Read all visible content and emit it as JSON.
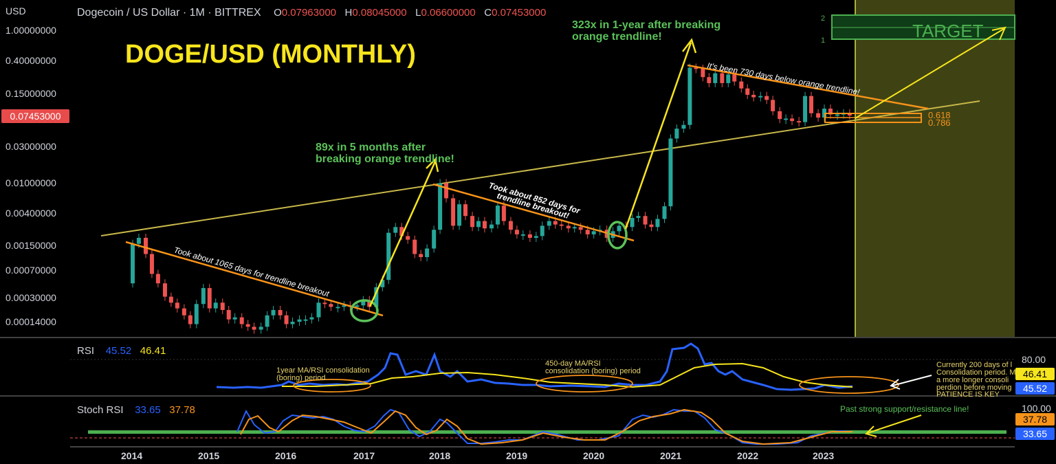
{
  "header": {
    "symbol": "Dogecoin / US Dollar · 1M · BITTREX",
    "o_key": "O",
    "o_val": "0.07963000",
    "h_key": "H",
    "h_val": "0.08045000",
    "l_key": "L",
    "l_val": "0.06600000",
    "c_key": "C",
    "c_val": "0.07453000",
    "currency": "USD"
  },
  "title": "DOGE/USD (MONTHLY)",
  "current_price": "0.07453000",
  "chart_data": {
    "type": "candlestick",
    "scale": "log",
    "y_ticks": [
      "1.00000000",
      "0.40000000",
      "0.15000000",
      "0.03000000",
      "0.01000000",
      "0.00400000",
      "0.00150000",
      "0.00070000",
      "0.00030000",
      "0.00014000"
    ],
    "x_ticks": [
      "2014",
      "2015",
      "2016",
      "2017",
      "2018",
      "2019",
      "2020",
      "2021",
      "2022",
      "2023"
    ],
    "candles": [
      {
        "t": 2014.0,
        "o": 0.00045,
        "c": 0.0015
      },
      {
        "t": 2014.08,
        "o": 0.0015,
        "c": 0.0018
      },
      {
        "t": 2014.17,
        "o": 0.0018,
        "c": 0.0011
      },
      {
        "t": 2014.25,
        "o": 0.0011,
        "c": 0.0006
      },
      {
        "t": 2014.33,
        "o": 0.0006,
        "c": 0.00045
      },
      {
        "t": 2014.42,
        "o": 0.00045,
        "c": 0.0003
      },
      {
        "t": 2014.5,
        "o": 0.0003,
        "c": 0.00025
      },
      {
        "t": 2014.58,
        "o": 0.00025,
        "c": 0.00021
      },
      {
        "t": 2014.67,
        "o": 0.00021,
        "c": 0.00017
      },
      {
        "t": 2014.75,
        "o": 0.00017,
        "c": 0.00013
      },
      {
        "t": 2014.83,
        "o": 0.00013,
        "c": 0.00024
      },
      {
        "t": 2014.92,
        "o": 0.00024,
        "c": 0.00039
      },
      {
        "t": 2015.0,
        "o": 0.00039,
        "c": 0.00021
      },
      {
        "t": 2015.08,
        "o": 0.00021,
        "c": 0.00025
      },
      {
        "t": 2015.17,
        "o": 0.00025,
        "c": 0.0002
      },
      {
        "t": 2015.25,
        "o": 0.0002,
        "c": 0.00015
      },
      {
        "t": 2015.33,
        "o": 0.00015,
        "c": 0.00016
      },
      {
        "t": 2015.42,
        "o": 0.00016,
        "c": 0.00013
      },
      {
        "t": 2015.5,
        "o": 0.00013,
        "c": 0.00012
      },
      {
        "t": 2015.58,
        "o": 0.00012,
        "c": 0.00011
      },
      {
        "t": 2015.67,
        "o": 0.00011,
        "c": 0.00012
      },
      {
        "t": 2015.75,
        "o": 0.00012,
        "c": 0.00017
      },
      {
        "t": 2015.83,
        "o": 0.00017,
        "c": 0.0002
      },
      {
        "t": 2015.92,
        "o": 0.0002,
        "c": 0.00017
      },
      {
        "t": 2016.0,
        "o": 0.00017,
        "c": 0.00013
      },
      {
        "t": 2016.08,
        "o": 0.00013,
        "c": 0.00014
      },
      {
        "t": 2016.17,
        "o": 0.00014,
        "c": 0.00015
      },
      {
        "t": 2016.25,
        "o": 0.00015,
        "c": 0.00015
      },
      {
        "t": 2016.33,
        "o": 0.00015,
        "c": 0.00016
      },
      {
        "t": 2016.42,
        "o": 0.00016,
        "c": 0.00025
      },
      {
        "t": 2016.5,
        "o": 0.00025,
        "c": 0.00024
      },
      {
        "t": 2016.58,
        "o": 0.00024,
        "c": 0.00022
      },
      {
        "t": 2016.67,
        "o": 0.00022,
        "c": 0.00022
      },
      {
        "t": 2016.75,
        "o": 0.00022,
        "c": 0.00023
      },
      {
        "t": 2016.83,
        "o": 0.00023,
        "c": 0.00022
      },
      {
        "t": 2016.92,
        "o": 0.00022,
        "c": 0.00023
      },
      {
        "t": 2017.0,
        "o": 0.00023,
        "c": 0.00027
      },
      {
        "t": 2017.08,
        "o": 0.00027,
        "c": 0.00022
      },
      {
        "t": 2017.17,
        "o": 0.00022,
        "c": 0.0004
      },
      {
        "t": 2017.25,
        "o": 0.0004,
        "c": 0.0005
      },
      {
        "t": 2017.33,
        "o": 0.0005,
        "c": 0.0021
      },
      {
        "t": 2017.42,
        "o": 0.0021,
        "c": 0.0025
      },
      {
        "t": 2017.5,
        "o": 0.0025,
        "c": 0.0019
      },
      {
        "t": 2017.58,
        "o": 0.0019,
        "c": 0.0017
      },
      {
        "t": 2017.67,
        "o": 0.0017,
        "c": 0.0011
      },
      {
        "t": 2017.75,
        "o": 0.0011,
        "c": 0.001
      },
      {
        "t": 2017.83,
        "o": 0.001,
        "c": 0.0013
      },
      {
        "t": 2017.92,
        "o": 0.0013,
        "c": 0.0023
      },
      {
        "t": 2018.0,
        "o": 0.0023,
        "c": 0.0095
      },
      {
        "t": 2018.08,
        "o": 0.0095,
        "c": 0.006
      },
      {
        "t": 2018.17,
        "o": 0.006,
        "c": 0.0026
      },
      {
        "t": 2018.25,
        "o": 0.0026,
        "c": 0.005
      },
      {
        "t": 2018.33,
        "o": 0.005,
        "c": 0.0035
      },
      {
        "t": 2018.42,
        "o": 0.0035,
        "c": 0.0025
      },
      {
        "t": 2018.5,
        "o": 0.0025,
        "c": 0.003
      },
      {
        "t": 2018.58,
        "o": 0.003,
        "c": 0.0024
      },
      {
        "t": 2018.67,
        "o": 0.0024,
        "c": 0.0027
      },
      {
        "t": 2018.75,
        "o": 0.0027,
        "c": 0.0048
      },
      {
        "t": 2018.83,
        "o": 0.0048,
        "c": 0.003
      },
      {
        "t": 2018.92,
        "o": 0.003,
        "c": 0.0023
      },
      {
        "t": 2019.0,
        "o": 0.0023,
        "c": 0.002
      },
      {
        "t": 2019.08,
        "o": 0.002,
        "c": 0.002
      },
      {
        "t": 2019.17,
        "o": 0.002,
        "c": 0.0018
      },
      {
        "t": 2019.25,
        "o": 0.0018,
        "c": 0.0019
      },
      {
        "t": 2019.33,
        "o": 0.0019,
        "c": 0.0026
      },
      {
        "t": 2019.42,
        "o": 0.0026,
        "c": 0.003
      },
      {
        "t": 2019.5,
        "o": 0.003,
        "c": 0.0027
      },
      {
        "t": 2019.58,
        "o": 0.0027,
        "c": 0.0026
      },
      {
        "t": 2019.67,
        "o": 0.0026,
        "c": 0.0024
      },
      {
        "t": 2019.75,
        "o": 0.0024,
        "c": 0.0025
      },
      {
        "t": 2019.83,
        "o": 0.0025,
        "c": 0.0023
      },
      {
        "t": 2019.92,
        "o": 0.0023,
        "c": 0.002
      },
      {
        "t": 2020.0,
        "o": 0.002,
        "c": 0.0022
      },
      {
        "t": 2020.08,
        "o": 0.0022,
        "c": 0.0023
      },
      {
        "t": 2020.17,
        "o": 0.0023,
        "c": 0.0018
      },
      {
        "t": 2020.25,
        "o": 0.0018,
        "c": 0.0022
      },
      {
        "t": 2020.33,
        "o": 0.0022,
        "c": 0.0026
      },
      {
        "t": 2020.42,
        "o": 0.0026,
        "c": 0.0025
      },
      {
        "t": 2020.5,
        "o": 0.0025,
        "c": 0.0033
      },
      {
        "t": 2020.58,
        "o": 0.0033,
        "c": 0.0035
      },
      {
        "t": 2020.67,
        "o": 0.0035,
        "c": 0.0027
      },
      {
        "t": 2020.75,
        "o": 0.0027,
        "c": 0.0025
      },
      {
        "t": 2020.83,
        "o": 0.0025,
        "c": 0.0032
      },
      {
        "t": 2020.92,
        "o": 0.0032,
        "c": 0.0047
      },
      {
        "t": 2021.0,
        "o": 0.0047,
        "c": 0.037
      },
      {
        "t": 2021.08,
        "o": 0.037,
        "c": 0.05
      },
      {
        "t": 2021.17,
        "o": 0.05,
        "c": 0.056
      },
      {
        "t": 2021.25,
        "o": 0.056,
        "c": 0.32
      },
      {
        "t": 2021.33,
        "o": 0.32,
        "c": 0.31
      },
      {
        "t": 2021.42,
        "o": 0.31,
        "c": 0.24
      },
      {
        "t": 2021.5,
        "o": 0.24,
        "c": 0.2
      },
      {
        "t": 2021.58,
        "o": 0.2,
        "c": 0.27
      },
      {
        "t": 2021.67,
        "o": 0.27,
        "c": 0.2
      },
      {
        "t": 2021.75,
        "o": 0.2,
        "c": 0.26
      },
      {
        "t": 2021.83,
        "o": 0.26,
        "c": 0.21
      },
      {
        "t": 2021.92,
        "o": 0.21,
        "c": 0.17
      },
      {
        "t": 2022.0,
        "o": 0.17,
        "c": 0.14
      },
      {
        "t": 2022.08,
        "o": 0.14,
        "c": 0.13
      },
      {
        "t": 2022.17,
        "o": 0.13,
        "c": 0.135
      },
      {
        "t": 2022.25,
        "o": 0.135,
        "c": 0.12
      },
      {
        "t": 2022.33,
        "o": 0.12,
        "c": 0.085
      },
      {
        "t": 2022.42,
        "o": 0.085,
        "c": 0.067
      },
      {
        "t": 2022.5,
        "o": 0.067,
        "c": 0.068
      },
      {
        "t": 2022.58,
        "o": 0.068,
        "c": 0.063
      },
      {
        "t": 2022.67,
        "o": 0.063,
        "c": 0.061
      },
      {
        "t": 2022.75,
        "o": 0.061,
        "c": 0.135
      },
      {
        "t": 2022.83,
        "o": 0.135,
        "c": 0.08
      },
      {
        "t": 2022.92,
        "o": 0.08,
        "c": 0.07
      },
      {
        "t": 2023.0,
        "o": 0.07,
        "c": 0.092
      },
      {
        "t": 2023.08,
        "o": 0.092,
        "c": 0.077
      },
      {
        "t": 2023.17,
        "o": 0.077,
        "c": 0.077
      },
      {
        "t": 2023.25,
        "o": 0.077,
        "c": 0.08
      },
      {
        "t": 2023.33,
        "o": 0.08,
        "c": 0.0745
      }
    ]
  },
  "annotations": {
    "a1065": "Took about 1065 days for trendline breakout",
    "a852_1": "Took about 852 days for",
    "a852_2": "trendline breakout!",
    "a730": "It's been 730 days below orange trendline!",
    "g89_1": "89x in 5 months after",
    "g89_2": "breaking orange trendline!",
    "g323_1": "323x in 1-year after breaking",
    "g323_2": "orange trendline!",
    "target": "TARGET",
    "fib_1": "1",
    "fib_2": "2",
    "fib_618": "0.618",
    "fib_786": "0.786",
    "rsi_c1_1": "1year MA/RSI consolidation",
    "rsi_c1_2": "(boring) period",
    "rsi_c2_1": "450-day MA/RSI",
    "rsi_c2_2": "consolidation (boring) period",
    "rsi_note_1": "Currently 200 days of l",
    "rsi_note_2": "Consolidation period. M",
    "rsi_note_3": "a more longer consoli",
    "rsi_note_4": "perdion before moving",
    "rsi_note_5": "PATIENCE IS KEY",
    "stoch_note": "Past strong support/resistance line!"
  },
  "rsi": {
    "label": "RSI",
    "v1": "45.52",
    "v2": "46.41",
    "level": "80.00"
  },
  "stoch": {
    "label": "Stoch RSI",
    "v1": "33.65",
    "v2": "37.78",
    "level": "100.00"
  },
  "colors": {
    "up": "#26a69a",
    "down": "#ef5350",
    "orange": "#f7931a",
    "yellow": "#f7e51d",
    "green": "#4caf50",
    "blue": "#2962ff"
  }
}
